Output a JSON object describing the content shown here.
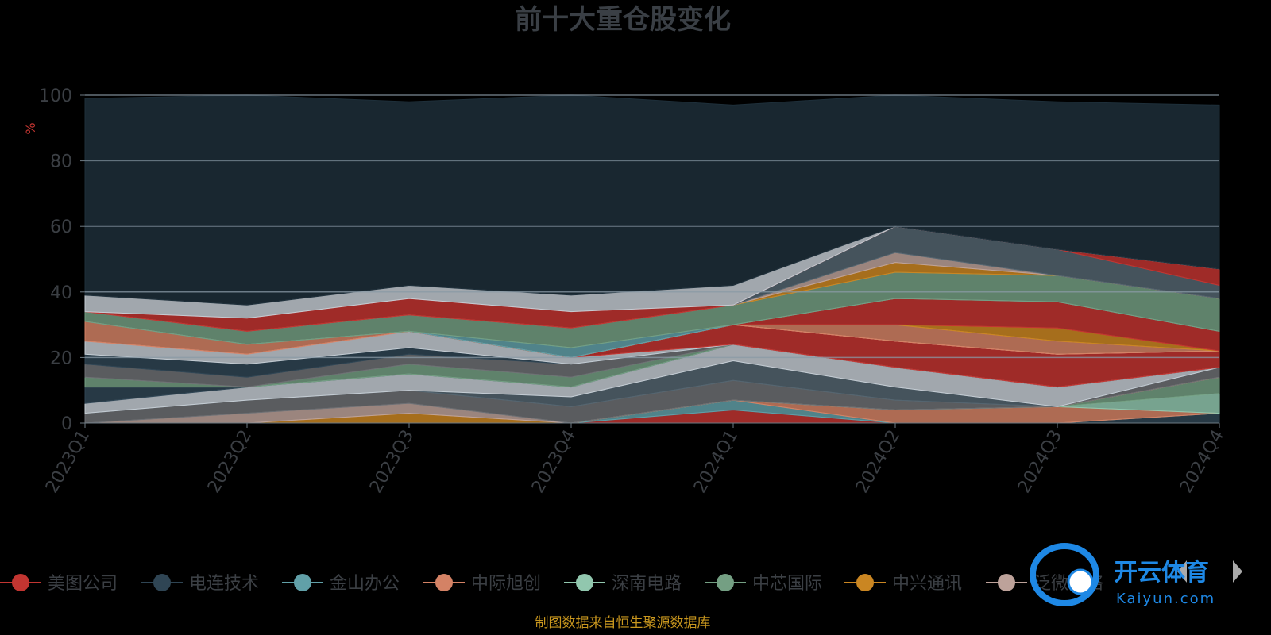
{
  "chart_data": {
    "type": "area",
    "title": "前十大重仓股变化",
    "ylabel": "%",
    "ylim": [
      0,
      100
    ],
    "yticks": [
      "0",
      "20",
      "40",
      "60",
      "80",
      "100"
    ],
    "categories": [
      "2023Q1",
      "2023Q2",
      "2023Q3",
      "2023Q4",
      "2024Q1",
      "2024Q2",
      "2024Q3",
      "2024Q4"
    ],
    "stacked": true,
    "grid": true,
    "legend_position": "bottom",
    "series": [
      {
        "name": "美图公司",
        "color": "#c23531",
        "values": [
          0,
          0,
          0,
          0,
          4,
          0,
          0,
          0
        ]
      },
      {
        "name": "电连技术",
        "color": "#2f4554",
        "values": [
          0,
          0,
          0,
          0,
          0,
          0,
          0,
          3
        ]
      },
      {
        "name": "金山办公",
        "color": "#61a0a8",
        "values": [
          0,
          0,
          0,
          0,
          3,
          0,
          0,
          0
        ]
      },
      {
        "name": "中际旭创",
        "color": "#d48265",
        "values": [
          0,
          0,
          0,
          0,
          0,
          4,
          5,
          0
        ]
      },
      {
        "name": "深南电路",
        "color": "#91c7ae",
        "values": [
          0,
          0,
          0,
          0,
          0,
          0,
          0,
          6
        ]
      },
      {
        "name": "中芯国际",
        "color": "#749f83",
        "values": [
          0,
          0,
          0,
          0,
          0,
          0,
          0,
          5
        ]
      },
      {
        "name": "中兴通讯",
        "color": "#ca8622",
        "values": [
          0,
          0,
          3,
          0,
          0,
          0,
          0,
          0
        ]
      },
      {
        "name": "泛微网络",
        "color": "#bda29a",
        "values": [
          0,
          3,
          3,
          0,
          0,
          0,
          0,
          0
        ]
      }
    ],
    "other_layers": [
      {
        "color": "#6e7074",
        "values": [
          3,
          4,
          4,
          5,
          6,
          3,
          0,
          3
        ]
      },
      {
        "color": "#546570",
        "values": [
          0,
          0,
          0,
          3,
          6,
          4,
          0,
          0
        ]
      },
      {
        "color": "#c4ccd3",
        "values": [
          3,
          4,
          5,
          3,
          5,
          6,
          6,
          0
        ]
      },
      {
        "color": "#2f4554",
        "values": [
          5,
          0,
          0,
          0,
          0,
          0,
          0,
          0
        ]
      },
      {
        "color": "#749f83",
        "values": [
          3,
          0,
          3,
          3,
          0,
          0,
          0,
          0
        ]
      },
      {
        "color": "#6e7074",
        "values": [
          4,
          3,
          3,
          4,
          0,
          0,
          0,
          0
        ]
      },
      {
        "color": "#2f4554",
        "values": [
          3,
          4,
          2,
          0,
          0,
          0,
          0,
          0
        ]
      },
      {
        "color": "#c4ccd3",
        "values": [
          4,
          3,
          5,
          2,
          0,
          0,
          0,
          0
        ]
      },
      {
        "color": "#c23531",
        "values": [
          0,
          0,
          0,
          0,
          6,
          8,
          10,
          5
        ]
      },
      {
        "color": "#c4ccd3",
        "values": [
          0,
          0,
          0,
          0,
          0,
          0,
          0,
          0
        ]
      },
      {
        "color": "#d48265",
        "values": [
          6,
          3,
          0,
          0,
          0,
          0,
          0,
          0
        ]
      },
      {
        "color": "#d48265",
        "values": [
          0,
          0,
          0,
          0,
          0,
          5,
          4,
          0
        ]
      },
      {
        "color": "#ca8622",
        "values": [
          0,
          0,
          0,
          0,
          0,
          0,
          4,
          0
        ]
      },
      {
        "color": "#c23531",
        "values": [
          0,
          0,
          0,
          0,
          0,
          8,
          8,
          6
        ]
      },
      {
        "color": "#61a0a8",
        "values": [
          0,
          0,
          0,
          3,
          0,
          0,
          0,
          0
        ]
      },
      {
        "color": "#749f83",
        "values": [
          3,
          4,
          5,
          6,
          6,
          8,
          8,
          10
        ]
      },
      {
        "color": "#ca8622",
        "values": [
          0,
          0,
          0,
          0,
          0,
          3,
          0,
          0
        ]
      },
      {
        "color": "#bda29a",
        "values": [
          0,
          0,
          0,
          0,
          0,
          3,
          0,
          0
        ]
      },
      {
        "color": "#546570",
        "values": [
          0,
          0,
          0,
          0,
          0,
          8,
          8,
          4
        ]
      },
      {
        "color": "#c23531",
        "values": [
          0,
          4,
          5,
          5,
          0,
          0,
          0,
          5
        ]
      },
      {
        "color": "#c4ccd3",
        "values": [
          5,
          4,
          4,
          5,
          6,
          0,
          0,
          0
        ]
      },
      {
        "color": "#1e2f3a",
        "values": [
          60,
          66,
          56,
          62,
          55,
          44,
          45,
          50
        ]
      }
    ],
    "source_note": "制图数据来自恒生聚源数据库"
  },
  "legend": {
    "items": [
      "美图公司",
      "电连技术",
      "金山办公",
      "中际旭创",
      "深南电路",
      "中芯国际",
      "中兴通讯",
      "泛微网络"
    ],
    "prev_icon": "chevron-left-icon",
    "next_icon": "chevron-right-icon"
  },
  "watermark": {
    "logo_text": "开云体育",
    "logo_sub": "Kaiyun.com"
  }
}
